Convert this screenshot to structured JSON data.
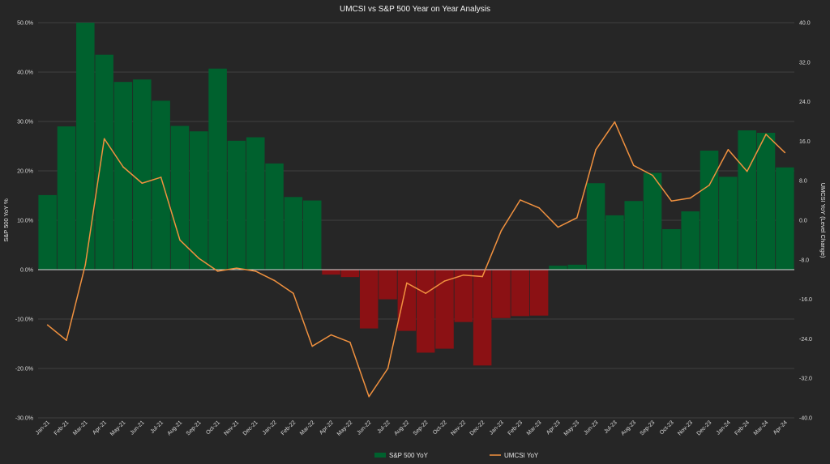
{
  "chart_data": {
    "type": "bar",
    "title": "UMCSI vs S&P 500 Year on Year  Analysis",
    "ylabel": "S&P 500 YoY %",
    "y2label": "UMCSI YoY (Level Change)",
    "ylim": [
      -30,
      50
    ],
    "y2lim": [
      -40,
      40
    ],
    "yticks": [
      "50.0%",
      "40.0%",
      "30.0%",
      "20.0%",
      "10.0%",
      "0.0%",
      "-10.0%",
      "-20.0%",
      "-30.0%"
    ],
    "y2ticks": [
      "40.0",
      "32.0",
      "24.0",
      "16.0",
      "8.0",
      "0.0",
      "-8.0",
      "-16.0",
      "-24.0",
      "-32.0",
      "-40.0"
    ],
    "categories": [
      "Jan-21",
      "Feb-21",
      "Mar-21",
      "Apr-21",
      "May-21",
      "Jun-21",
      "Jul-21",
      "Aug-21",
      "Sep-21",
      "Oct-21",
      "Nov-21",
      "Dec-21",
      "Jan-22",
      "Feb-22",
      "Mar-22",
      "Apr-22",
      "May-22",
      "Jun-22",
      "Jul-22",
      "Aug-22",
      "Sep-22",
      "Oct-22",
      "Nov-22",
      "Dec-22",
      "Jan-23",
      "Feb-23",
      "Mar-23",
      "Apr-23",
      "May-23",
      "Jun-23",
      "Jul-23",
      "Aug-23",
      "Sep-23",
      "Oct-23",
      "Nov-23",
      "Dec-23",
      "Jan-24",
      "Feb-24",
      "Mar-24",
      "Apr-24"
    ],
    "series": [
      {
        "name": "S&P 500 YoY",
        "type": "bar",
        "axis": "left",
        "positive_color": "#00612e",
        "negative_color": "#8b1114",
        "values": [
          15.1,
          29.0,
          50.0,
          43.5,
          38.0,
          38.5,
          34.2,
          29.1,
          28.0,
          40.7,
          26.1,
          26.8,
          21.5,
          14.7,
          14.0,
          -1.0,
          -1.5,
          -11.9,
          -6.0,
          -12.4,
          -16.8,
          -16.0,
          -10.6,
          -19.4,
          -9.8,
          -9.4,
          -9.3,
          0.8,
          1.0,
          17.5,
          11.0,
          13.9,
          19.6,
          8.2,
          11.8,
          24.1,
          18.8,
          28.2,
          27.7,
          20.7
        ]
      },
      {
        "name": "UMCSI YoY",
        "type": "line",
        "axis": "right",
        "color": "#f0913f",
        "values": [
          -21.2,
          -24.3,
          -9.0,
          16.5,
          10.8,
          7.5,
          8.7,
          -4.0,
          -7.7,
          -10.3,
          -9.7,
          -10.3,
          -12.2,
          -14.8,
          -25.5,
          -23.2,
          -24.7,
          -35.7,
          -30.0,
          -12.7,
          -14.8,
          -12.3,
          -11.1,
          -11.4,
          -2.1,
          4.1,
          2.5,
          -1.4,
          0.5,
          14.3,
          19.9,
          11.1,
          9.1,
          3.9,
          4.5,
          7.1,
          14.3,
          9.9,
          17.4,
          13.7
        ]
      }
    ],
    "grid": true,
    "legend_position": "bottom"
  }
}
